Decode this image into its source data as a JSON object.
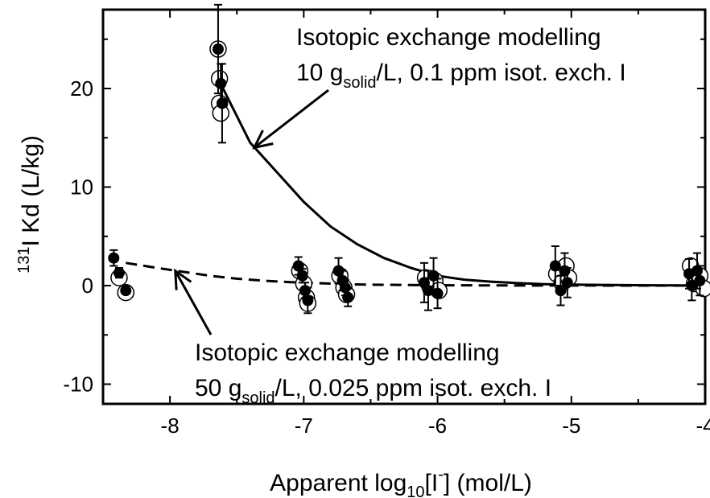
{
  "chart_data": {
    "type": "scatter",
    "xlim": [
      -8.5,
      -4
    ],
    "ylim": [
      -12,
      28
    ],
    "x_ticks": [
      -8,
      -7,
      -6,
      -5,
      -4
    ],
    "y_ticks": [
      -10,
      0,
      10,
      20
    ],
    "x_tick_labels": [
      "-8",
      "-7",
      "-6",
      "-5",
      "-4"
    ],
    "y_tick_labels": [
      "-10",
      "0",
      "10",
      "20"
    ],
    "xlabel": {
      "pre": "Apparent log",
      "sub": "10",
      "mid": "[I",
      "sup": "-",
      "post": "] (mol/L)"
    },
    "ylabel": {
      "sup": "131",
      "post": "I Kd (L/kg)"
    },
    "grid": false,
    "series": [
      {
        "marker": "filled-circle",
        "color": "#000000",
        "points": [
          {
            "x": -8.42,
            "y": 2.8,
            "err": 0.8
          },
          {
            "x": -8.38,
            "y": 1.3,
            "err": 0.5
          },
          {
            "x": -8.33,
            "y": -0.5,
            "err": 0.3
          },
          {
            "x": -7.64,
            "y": 24.0,
            "err": 4.5
          },
          {
            "x": -7.62,
            "y": 20.5,
            "err": 2.0
          },
          {
            "x": -7.61,
            "y": 18.5,
            "err": 4.0
          },
          {
            "x": -7.04,
            "y": 2.0,
            "err": 0.9
          },
          {
            "x": -7.01,
            "y": 1.0,
            "err": 0.7
          },
          {
            "x": -6.99,
            "y": -0.5,
            "err": 0.8
          },
          {
            "x": -6.97,
            "y": -1.5,
            "err": 1.3
          },
          {
            "x": -6.74,
            "y": 1.5,
            "err": 1.3
          },
          {
            "x": -6.71,
            "y": 0.5,
            "err": 1.0
          },
          {
            "x": -6.69,
            "y": -0.2,
            "err": 0.8
          },
          {
            "x": -6.67,
            "y": -1.2,
            "err": 0.9
          },
          {
            "x": -6.1,
            "y": 0.3,
            "err": 2.0
          },
          {
            "x": -6.07,
            "y": -0.5,
            "err": 2.0
          },
          {
            "x": -6.03,
            "y": 1.0,
            "err": 1.8
          },
          {
            "x": -6.0,
            "y": -0.8,
            "err": 1.5
          },
          {
            "x": -5.12,
            "y": 2.0,
            "err": 2.0
          },
          {
            "x": -5.08,
            "y": -0.5,
            "err": 1.5
          },
          {
            "x": -5.05,
            "y": 1.5,
            "err": 1.8
          },
          {
            "x": -5.03,
            "y": 0.3,
            "err": 1.5
          },
          {
            "x": -4.12,
            "y": 1.2,
            "err": 1.5
          },
          {
            "x": -4.1,
            "y": 0.0,
            "err": 1.5
          },
          {
            "x": -4.06,
            "y": 1.5,
            "err": 1.8
          },
          {
            "x": -4.04,
            "y": 0.5,
            "err": 1.5
          }
        ]
      },
      {
        "marker": "open-circle",
        "color": "#000000",
        "points": [
          {
            "x": -8.38,
            "y": 0.8
          },
          {
            "x": -8.33,
            "y": -0.7
          },
          {
            "x": -7.64,
            "y": 24.0
          },
          {
            "x": -7.63,
            "y": 21.0
          },
          {
            "x": -7.63,
            "y": 18.5
          },
          {
            "x": -7.62,
            "y": 17.5
          },
          {
            "x": -7.03,
            "y": 1.5
          },
          {
            "x": -7.0,
            "y": 0.2
          },
          {
            "x": -6.98,
            "y": -1.2
          },
          {
            "x": -6.97,
            "y": -1.8
          },
          {
            "x": -6.73,
            "y": 1.0
          },
          {
            "x": -6.7,
            "y": -0.2
          },
          {
            "x": -6.68,
            "y": -0.9
          },
          {
            "x": -6.09,
            "y": 0.8
          },
          {
            "x": -6.06,
            "y": 0.0
          },
          {
            "x": -6.02,
            "y": 0.5
          },
          {
            "x": -5.99,
            "y": -0.5
          },
          {
            "x": -5.11,
            "y": 1.2
          },
          {
            "x": -5.07,
            "y": 0.3
          },
          {
            "x": -5.04,
            "y": 2.0
          },
          {
            "x": -5.02,
            "y": 0.8
          },
          {
            "x": -4.11,
            "y": 2.0
          },
          {
            "x": -4.08,
            "y": 0.2
          },
          {
            "x": -4.04,
            "y": 1.0
          },
          {
            "x": -4.01,
            "y": -0.3
          }
        ]
      },
      {
        "marker": "line",
        "dash": "solid",
        "x": [
          -7.64,
          -7.4,
          -7.2,
          -7.0,
          -6.8,
          -6.6,
          -6.4,
          -6.2,
          -6.0,
          -5.8,
          -5.6,
          -5.4,
          -5.2,
          -5.0,
          -4.8,
          -4.6,
          -4.4,
          -4.2,
          -4.0
        ],
        "y": [
          21.0,
          14.5,
          11.5,
          8.5,
          6.0,
          4.2,
          2.8,
          1.8,
          1.0,
          0.6,
          0.4,
          0.25,
          0.15,
          0.1,
          0.07,
          0.05,
          0.03,
          0.02,
          0.01
        ]
      },
      {
        "marker": "line",
        "dash": "dashed",
        "x": [
          -8.33,
          -8.1,
          -7.9,
          -7.7,
          -7.5,
          -7.3,
          -7.1,
          -6.9,
          -6.7,
          -6.5,
          -6.3,
          -6.1,
          -5.9,
          -5.5,
          -5.0,
          -4.5,
          -4.0
        ],
        "y": [
          2.3,
          1.8,
          1.4,
          1.0,
          0.7,
          0.5,
          0.35,
          0.25,
          0.15,
          0.1,
          0.07,
          0.05,
          0.03,
          0.02,
          0.01,
          0.0,
          0.0
        ]
      }
    ],
    "annotations": [
      {
        "line1": "Isotopic exchange modelling",
        "line2": {
          "pre": "10 g",
          "sub": "solid",
          "post": "/L, 0.1 ppm isot. exch. I"
        },
        "arrow_to": {
          "x": -7.37,
          "y": 14.0
        }
      },
      {
        "line1": "Isotopic exchange modelling",
        "line2": {
          "pre": "50 g",
          "sub": "solid",
          "post": "/L, 0.025 ppm isot. exch. I"
        },
        "arrow_to": {
          "x": -7.96,
          "y": 1.5
        }
      }
    ]
  }
}
